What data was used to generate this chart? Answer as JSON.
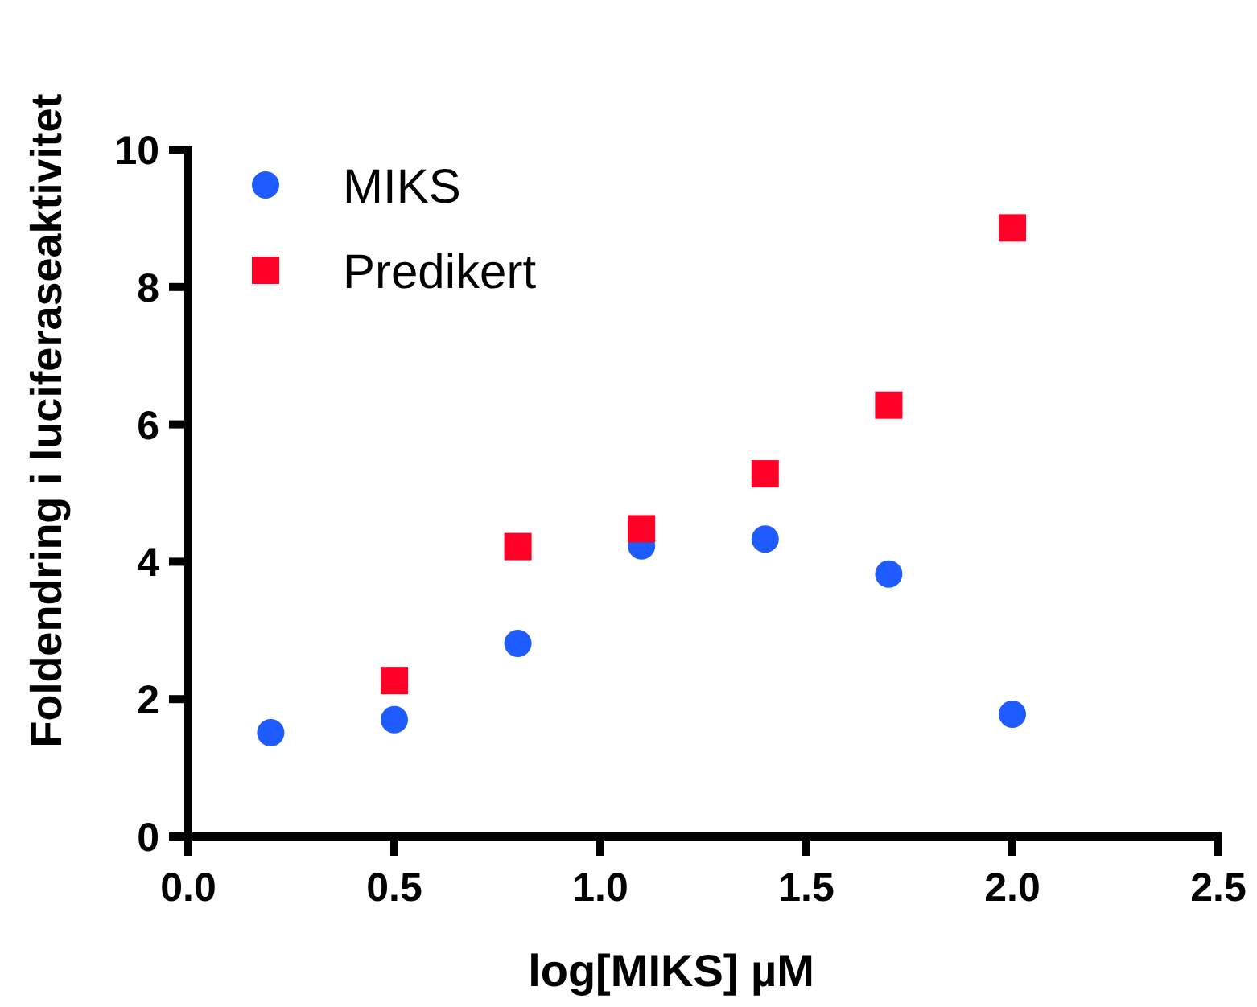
{
  "chart_data": {
    "type": "scatter",
    "xlabel": "log[MIKS] µM",
    "ylabel": "Foldendring i luciferaseaktivitet",
    "xlim": [
      0,
      2.5
    ],
    "xticks": [
      {
        "value": 0,
        "label": "0.0"
      },
      0.5,
      {
        "value": 1,
        "label": "1.0"
      },
      1.5,
      {
        "value": 2,
        "label": "2.0"
      },
      2.5
    ],
    "ylim": [
      0,
      10
    ],
    "yticks": [
      0,
      2,
      4,
      6,
      8,
      10
    ],
    "grid": false,
    "legend": "top left",
    "series": [
      {
        "name": "MIKS",
        "color": "#1f5cff",
        "marker": "circle",
        "x": [
          0.2,
          0.5,
          0.8,
          1.1,
          1.4,
          1.7,
          2.0
        ],
        "values": [
          1.51,
          1.7,
          2.81,
          4.23,
          4.33,
          3.82,
          1.78
        ]
      },
      {
        "name": "Predikert",
        "color": "#ff0027",
        "marker": "square",
        "x": [
          0.5,
          0.8,
          1.1,
          1.4,
          1.7,
          2.0
        ],
        "values": [
          2.27,
          4.22,
          4.48,
          5.28,
          6.28,
          8.86
        ]
      }
    ]
  }
}
